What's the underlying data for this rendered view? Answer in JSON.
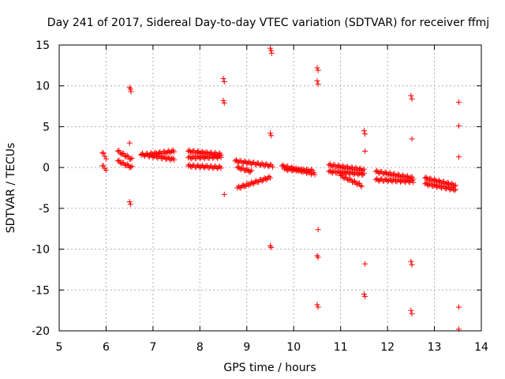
{
  "chart_data": {
    "type": "scatter",
    "title": "Day 241 of 2017, Sidereal Day-to-day VTEC variation (SDTVAR) for receiver ffmj",
    "xlabel": "GPS time / hours",
    "ylabel": "SDTVAR / TECUs",
    "xlim": [
      5,
      14
    ],
    "ylim": [
      -20,
      15
    ],
    "xticks": [
      "5",
      "6",
      "7",
      "8",
      "9",
      "10",
      "11",
      "12",
      "13",
      "14"
    ],
    "yticks": [
      "-20",
      "-15",
      "-10",
      "-5",
      "0",
      "5",
      "10",
      "15"
    ],
    "grid": true,
    "marker": "+",
    "color": "#ff0000",
    "series": [
      {
        "name": "SDTVAR",
        "arcs": [
          {
            "x0": 5.92,
            "x1": 6.0,
            "y0": 1.8,
            "y1": 1.2
          },
          {
            "x0": 5.92,
            "x1": 6.0,
            "y0": 0.2,
            "y1": -0.2
          },
          {
            "x0": 6.25,
            "x1": 6.55,
            "y0": 2.0,
            "y1": 1.0
          },
          {
            "x0": 6.25,
            "x1": 6.55,
            "y0": 0.8,
            "y1": 0.0
          },
          {
            "x0": 6.75,
            "x1": 7.45,
            "y0": 1.5,
            "y1": 2.0
          },
          {
            "x0": 6.75,
            "x1": 7.45,
            "y0": 1.6,
            "y1": 1.0
          },
          {
            "x0": 7.75,
            "x1": 8.45,
            "y0": 2.0,
            "y1": 1.6
          },
          {
            "x0": 7.75,
            "x1": 8.45,
            "y0": 1.2,
            "y1": 1.3
          },
          {
            "x0": 7.75,
            "x1": 8.45,
            "y0": 0.2,
            "y1": 0.0
          },
          {
            "x0": 8.75,
            "x1": 9.55,
            "y0": 0.8,
            "y1": 0.2
          },
          {
            "x0": 8.8,
            "x1": 9.1,
            "y0": 0.0,
            "y1": -0.5
          },
          {
            "x0": 8.8,
            "x1": 9.5,
            "y0": -2.5,
            "y1": -1.2
          },
          {
            "x0": 9.75,
            "x1": 10.45,
            "y0": 0.2,
            "y1": -0.8
          },
          {
            "x0": 9.8,
            "x1": 10.4,
            "y0": -0.2,
            "y1": -0.4
          },
          {
            "x0": 10.75,
            "x1": 11.5,
            "y0": 0.3,
            "y1": -0.3
          },
          {
            "x0": 10.75,
            "x1": 11.5,
            "y0": -0.5,
            "y1": -0.8
          },
          {
            "x0": 11.0,
            "x1": 11.45,
            "y0": -1.0,
            "y1": -2.2
          },
          {
            "x0": 11.75,
            "x1": 12.55,
            "y0": -0.5,
            "y1": -1.3
          },
          {
            "x0": 11.75,
            "x1": 12.55,
            "y0": -1.5,
            "y1": -1.7
          },
          {
            "x0": 12.8,
            "x1": 13.45,
            "y0": -1.3,
            "y1": -2.2
          },
          {
            "x0": 12.8,
            "x1": 13.45,
            "y0": -2.0,
            "y1": -2.7
          }
        ],
        "points": [
          [
            6.5,
            9.8
          ],
          [
            6.52,
            9.6
          ],
          [
            6.53,
            9.3
          ],
          [
            6.5,
            3.0
          ],
          [
            6.5,
            -4.2
          ],
          [
            6.52,
            -4.5
          ],
          [
            8.5,
            10.9
          ],
          [
            8.52,
            10.5
          ],
          [
            8.5,
            8.2
          ],
          [
            8.52,
            7.9
          ],
          [
            8.52,
            -3.3
          ],
          [
            9.5,
            14.6
          ],
          [
            9.52,
            14.3
          ],
          [
            9.53,
            14.0
          ],
          [
            9.5,
            4.2
          ],
          [
            9.52,
            3.9
          ],
          [
            9.5,
            -9.6
          ],
          [
            9.52,
            -9.8
          ],
          [
            10.5,
            12.2
          ],
          [
            10.52,
            11.9
          ],
          [
            10.5,
            10.6
          ],
          [
            10.52,
            10.2
          ],
          [
            10.52,
            -7.6
          ],
          [
            10.5,
            -10.8
          ],
          [
            10.52,
            -11.0
          ],
          [
            10.5,
            -16.8
          ],
          [
            10.52,
            -17.1
          ],
          [
            11.5,
            4.5
          ],
          [
            11.52,
            4.1
          ],
          [
            11.52,
            2.0
          ],
          [
            11.52,
            -11.8
          ],
          [
            11.5,
            -15.5
          ],
          [
            11.52,
            -15.8
          ],
          [
            12.5,
            8.8
          ],
          [
            12.52,
            8.4
          ],
          [
            12.52,
            3.5
          ],
          [
            12.5,
            -11.5
          ],
          [
            12.52,
            -11.9
          ],
          [
            12.5,
            -17.5
          ],
          [
            12.52,
            -17.9
          ],
          [
            13.52,
            8.0
          ],
          [
            13.52,
            5.1
          ],
          [
            13.52,
            1.3
          ],
          [
            13.52,
            -17.1
          ],
          [
            13.52,
            -19.8
          ]
        ]
      }
    ]
  }
}
